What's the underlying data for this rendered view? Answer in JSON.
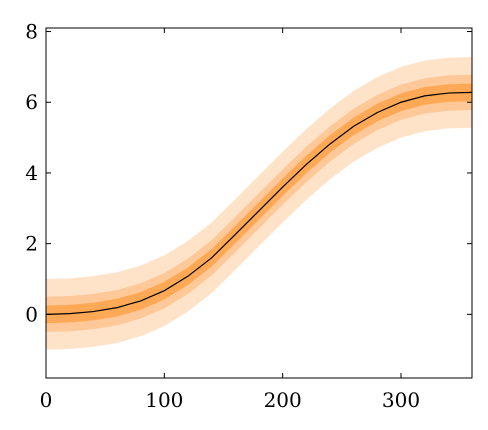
{
  "chart_data": {
    "type": "area",
    "title": "",
    "xlabel": "",
    "ylabel": "",
    "xlim": [
      0,
      360
    ],
    "ylim": [
      -1.8,
      8.1
    ],
    "x_ticks": [
      0,
      100,
      200,
      300
    ],
    "y_ticks": [
      0,
      2,
      4,
      6,
      8
    ],
    "grid": false,
    "legend": "none",
    "series": [
      {
        "role": "center-line",
        "color": "#000000",
        "x": [
          0,
          20,
          40,
          60,
          80,
          100,
          120,
          140,
          160,
          180,
          200,
          220,
          240,
          260,
          280,
          300,
          320,
          340,
          360
        ],
        "y": [
          0.0,
          0.02,
          0.08,
          0.19,
          0.38,
          0.67,
          1.08,
          1.6,
          2.26,
          2.93,
          3.6,
          4.24,
          4.82,
          5.32,
          5.71,
          6.0,
          6.18,
          6.26,
          6.28
        ]
      }
    ],
    "bands": [
      {
        "half_width": 1.0,
        "color": "#ffe3c8"
      },
      {
        "half_width": 0.5,
        "color": "#ffc898"
      },
      {
        "half_width": 0.25,
        "color": "#ffa855"
      }
    ]
  }
}
